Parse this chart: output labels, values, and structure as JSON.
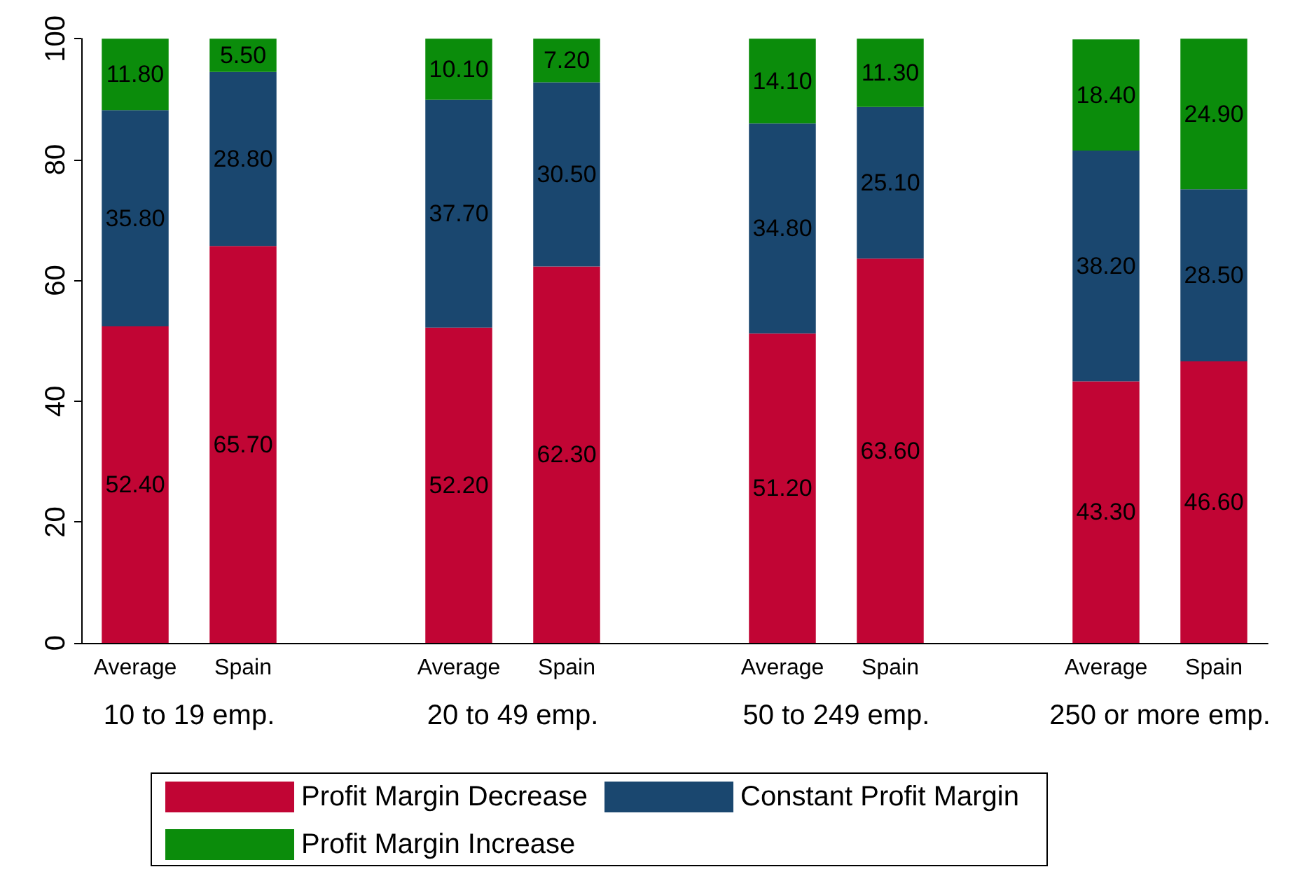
{
  "chart_data": {
    "type": "bar",
    "stacked": true,
    "categories": [
      "Average",
      "Spain",
      null,
      "Average",
      "Spain",
      null,
      "Average",
      "Spain",
      null,
      "Average",
      "Spain"
    ],
    "annotations": [
      "10 to 19 emp.",
      "20 to 49 emp.",
      "50 to 249 emp.",
      "250 or more emp."
    ],
    "series": [
      {
        "name": "Profit Margin Decrease",
        "color": "#c10534",
        "values": [
          52.4,
          65.7,
          null,
          52.2,
          62.3,
          null,
          51.2,
          63.6,
          null,
          43.3,
          46.6
        ],
        "value_labels": [
          "52.40",
          "65.70",
          null,
          "52.20",
          "62.30",
          null,
          "51.20",
          "63.60",
          null,
          "43.30",
          "46.60"
        ]
      },
      {
        "name": "Constant Profit Margin",
        "color": "#1a476f",
        "values": [
          35.8,
          28.8,
          null,
          37.7,
          30.5,
          null,
          34.8,
          25.1,
          null,
          38.2,
          28.5
        ],
        "value_labels": [
          "35.80",
          "28.80",
          null,
          "37.70",
          "30.50",
          null,
          "34.80",
          "25.10",
          null,
          "38.20",
          "28.50"
        ]
      },
      {
        "name": "Profit Margin Increase",
        "color": "#0b8c0b",
        "values": [
          11.8,
          5.5,
          null,
          10.1,
          7.2,
          null,
          14.1,
          11.3,
          null,
          18.4,
          24.9
        ],
        "value_labels": [
          "11.80",
          "5.50",
          null,
          "10.10",
          "7.20",
          null,
          "14.10",
          "11.30",
          null,
          "18.40",
          "24.90"
        ]
      }
    ],
    "ylim": [
      0,
      100
    ],
    "yticks": [
      0,
      20,
      40,
      60,
      80,
      100
    ],
    "grid": false,
    "legend": "bottom"
  }
}
